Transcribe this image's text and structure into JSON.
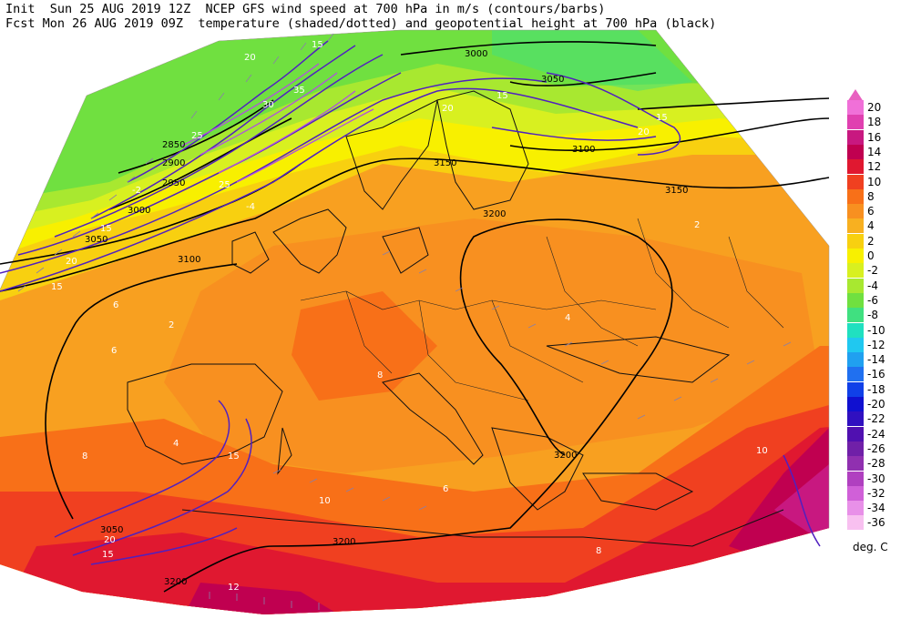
{
  "header": {
    "line1": "Init  Sun 25 AUG 2019 12Z  NCEP GFS wind speed at 700 hPa in m/s (contours/barbs)",
    "line2": "Fcst Mon 26 AUG 2019 09Z  temperature (shaded/dotted) and geopotential height at 700 hPa (black)"
  },
  "legend": {
    "units": "deg. C",
    "entries": [
      {
        "label": "20",
        "color": "#f070d8"
      },
      {
        "label": "18",
        "color": "#e040b0"
      },
      {
        "label": "16",
        "color": "#c81880"
      },
      {
        "label": "14",
        "color": "#c00050"
      },
      {
        "label": "12",
        "color": "#e01830"
      },
      {
        "label": "10",
        "color": "#f04020"
      },
      {
        "label": "8",
        "color": "#f87018"
      },
      {
        "label": "6",
        "color": "#f89020"
      },
      {
        "label": "4",
        "color": "#f8b020"
      },
      {
        "label": "2",
        "color": "#f8d010"
      },
      {
        "label": "0",
        "color": "#f8f000"
      },
      {
        "label": "-2",
        "color": "#d8f020"
      },
      {
        "label": "-4",
        "color": "#a8e830"
      },
      {
        "label": "-6",
        "color": "#70e040"
      },
      {
        "label": "-8",
        "color": "#40e080"
      },
      {
        "label": "-10",
        "color": "#20e0c0"
      },
      {
        "label": "-12",
        "color": "#20c8f0"
      },
      {
        "label": "-14",
        "color": "#20a0f0"
      },
      {
        "label": "-16",
        "color": "#2070f0"
      },
      {
        "label": "-18",
        "color": "#1040e8"
      },
      {
        "label": "-20",
        "color": "#1010d0"
      },
      {
        "label": "-22",
        "color": "#3010c0"
      },
      {
        "label": "-24",
        "color": "#5010b0"
      },
      {
        "label": "-26",
        "color": "#7020a8"
      },
      {
        "label": "-28",
        "color": "#9030b0"
      },
      {
        "label": "-30",
        "color": "#b040c0"
      },
      {
        "label": "-32",
        "color": "#d060d8"
      },
      {
        "label": "-34",
        "color": "#e890e8"
      },
      {
        "label": "-36",
        "color": "#f8c0f0"
      }
    ]
  },
  "height_labels": [
    "3000",
    "3050",
    "3100",
    "3150",
    "3200",
    "3050",
    "3100",
    "3150",
    "3200",
    "3200",
    "3200",
    "2850",
    "2900",
    "2950",
    "3000",
    "3050"
  ],
  "wind_labels": [
    "15",
    "20",
    "25",
    "30",
    "35",
    "15",
    "20",
    "15",
    "15",
    "20",
    "15",
    "20",
    "25",
    "15",
    "15",
    "20"
  ],
  "temp_labels": [
    "2",
    "4",
    "6",
    "8",
    "10",
    "12",
    "-2",
    "-4",
    "4",
    "6",
    "8",
    "10",
    "2",
    "6",
    "8"
  ]
}
